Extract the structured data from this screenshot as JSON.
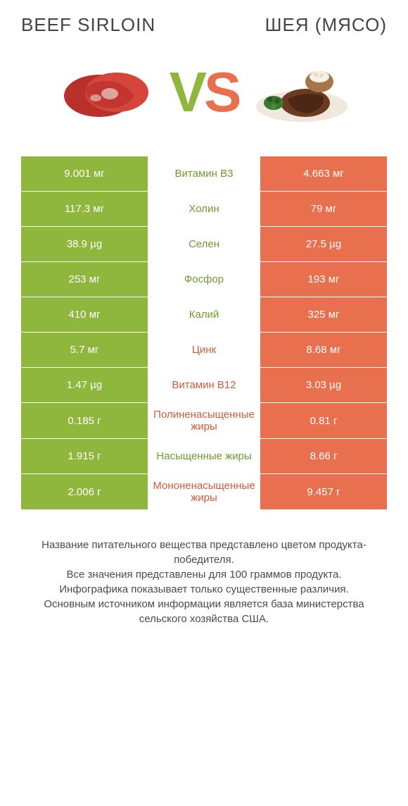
{
  "colors": {
    "green": "#8fb63d",
    "orange": "#e8704f",
    "mid_text_green": "#6f9a2f",
    "mid_text_orange": "#d35a3a",
    "title": "#444444",
    "foot": "#4b4b4b"
  },
  "header": {
    "left_title": "BEEF SIRLOIN",
    "right_title": "ШЕЯ (МЯСО)",
    "vs_v": "V",
    "vs_s": "S"
  },
  "rows": [
    {
      "left": "9.001 мг",
      "mid": "Витамин B3",
      "right": "4.663 мг",
      "winner": "left"
    },
    {
      "left": "117.3 мг",
      "mid": "Холин",
      "right": "79 мг",
      "winner": "left"
    },
    {
      "left": "38.9 µg",
      "mid": "Селен",
      "right": "27.5 µg",
      "winner": "left"
    },
    {
      "left": "253 мг",
      "mid": "Фосфор",
      "right": "193 мг",
      "winner": "left"
    },
    {
      "left": "410 мг",
      "mid": "Калий",
      "right": "325 мг",
      "winner": "left"
    },
    {
      "left": "5.7 мг",
      "mid": "Цинк",
      "right": "8.68 мг",
      "winner": "right"
    },
    {
      "left": "1.47 µg",
      "mid": "Витамин B12",
      "right": "3.03 µg",
      "winner": "right"
    },
    {
      "left": "0.185 г",
      "mid": "Полиненасыщенные жиры",
      "right": "0.81 г",
      "winner": "right"
    },
    {
      "left": "1.915 г",
      "mid": "Насыщенные жиры",
      "right": "8.66 г",
      "winner": "left"
    },
    {
      "left": "2.006 г",
      "mid": "Мононенасыщенные жиры",
      "right": "9.457 г",
      "winner": "right"
    }
  ],
  "footnote": {
    "l1": "Название питательного вещества представлено цветом продукта-победителя.",
    "l2": "Все значения представлены для 100 граммов продукта.",
    "l3": "Инфографика показывает только существенные различия.",
    "l4": "Основным источником информации является база министерства сельского хозяйства США."
  }
}
